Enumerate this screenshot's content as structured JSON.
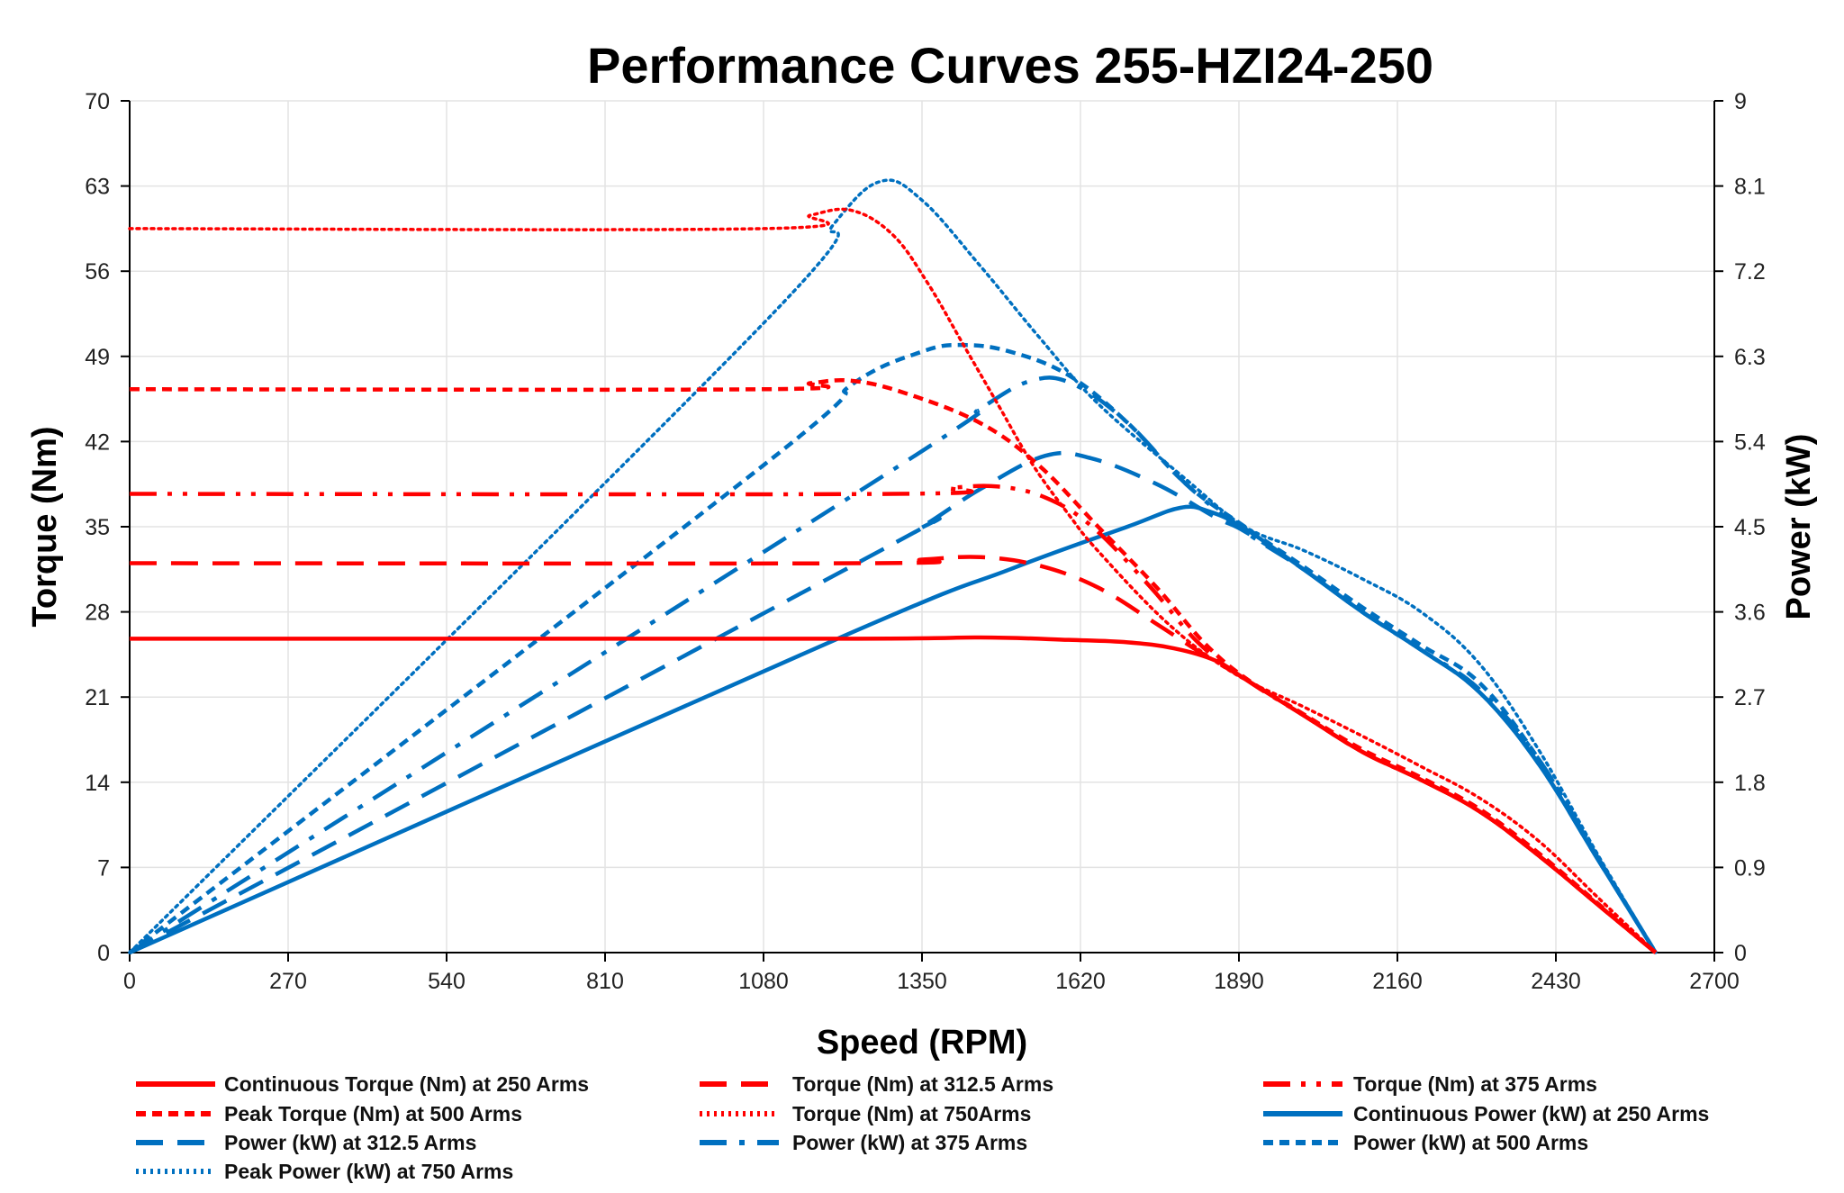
{
  "chart_data": {
    "type": "line",
    "title": "Performance Curves 255-HZI24-250",
    "xlabel": "Speed (RPM)",
    "ylabel": "Torque (Nm)",
    "y2label": "Power (kW)",
    "xlim": [
      0,
      2700
    ],
    "ylim": [
      0,
      70
    ],
    "y2lim": [
      0,
      9
    ],
    "xticks": [
      0,
      270,
      540,
      810,
      1080,
      1350,
      1620,
      1890,
      2160,
      2430,
      2700
    ],
    "yticks": [
      0,
      7,
      14,
      21,
      28,
      35,
      42,
      49,
      56,
      63,
      70
    ],
    "y2ticks": [
      "0",
      "0.9",
      "1.8",
      "2.7",
      "3.6",
      "4.5",
      "5.4",
      "6.3",
      "7.2",
      "8.1",
      "9"
    ],
    "grid": true,
    "legend_position": "bottom",
    "colors": {
      "torque": "#ff0000",
      "power": "#0070c0"
    },
    "series": [
      {
        "name": "Continuous Torque (Nm) at 250 Arms",
        "axis": "left",
        "color": "#ff0000",
        "style": "solid",
        "points": [
          [
            0,
            25.8
          ],
          [
            1200,
            25.8
          ],
          [
            1450,
            25.9
          ],
          [
            1600,
            25.7
          ],
          [
            1700,
            25.5
          ],
          [
            1780,
            25
          ],
          [
            1850,
            24
          ],
          [
            1900,
            22.5
          ],
          [
            2000,
            19.5
          ],
          [
            2100,
            16.5
          ],
          [
            2200,
            14.2
          ],
          [
            2300,
            11.6
          ],
          [
            2400,
            8
          ],
          [
            2500,
            4
          ],
          [
            2600,
            0
          ]
        ]
      },
      {
        "name": "Torque (Nm) at 312.5 Arms",
        "axis": "left",
        "color": "#ff0000",
        "style": "longdash",
        "points": [
          [
            0,
            32
          ],
          [
            1250,
            32
          ],
          [
            1350,
            32.3
          ],
          [
            1450,
            32.5
          ],
          [
            1550,
            31.8
          ],
          [
            1650,
            30
          ],
          [
            1750,
            27
          ],
          [
            1820,
            24.8
          ],
          [
            1900,
            22.5
          ],
          [
            2000,
            19.5
          ],
          [
            2100,
            16.5
          ],
          [
            2200,
            14.2
          ],
          [
            2300,
            11.6
          ],
          [
            2400,
            8
          ],
          [
            2500,
            4
          ],
          [
            2600,
            0
          ]
        ]
      },
      {
        "name": "Torque (Nm) at 375 Arms",
        "axis": "left",
        "color": "#ff0000",
        "style": "dashdotdot",
        "points": [
          [
            0,
            37.7
          ],
          [
            1300,
            37.7
          ],
          [
            1400,
            38.2
          ],
          [
            1480,
            38.3
          ],
          [
            1560,
            37.4
          ],
          [
            1640,
            35
          ],
          [
            1740,
            30
          ],
          [
            1820,
            25.5
          ],
          [
            1900,
            22.5
          ],
          [
            2000,
            19.5
          ],
          [
            2100,
            16.5
          ],
          [
            2200,
            14.2
          ],
          [
            2300,
            11.6
          ],
          [
            2400,
            8
          ],
          [
            2500,
            4
          ],
          [
            2600,
            0
          ]
        ]
      },
      {
        "name": "Peak Torque (Nm) at 500 Arms",
        "axis": "left",
        "color": "#ff0000",
        "style": "dash",
        "points": [
          [
            0,
            46.3
          ],
          [
            1080,
            46.3
          ],
          [
            1160,
            46.8
          ],
          [
            1230,
            47
          ],
          [
            1320,
            46
          ],
          [
            1450,
            43.5
          ],
          [
            1550,
            40
          ],
          [
            1650,
            35
          ],
          [
            1750,
            30
          ],
          [
            1830,
            25.5
          ],
          [
            1900,
            22.6
          ],
          [
            2000,
            19.6
          ],
          [
            2100,
            16.7
          ],
          [
            2200,
            14.4
          ],
          [
            2300,
            11.8
          ],
          [
            2400,
            8.2
          ],
          [
            2500,
            4.1
          ],
          [
            2600,
            0
          ]
        ]
      },
      {
        "name": "Torque (Nm) at 750Arms",
        "axis": "left",
        "color": "#ff0000",
        "style": "dot",
        "points": [
          [
            0,
            59.5
          ],
          [
            1080,
            59.5
          ],
          [
            1160,
            60.6
          ],
          [
            1230,
            61
          ],
          [
            1300,
            59
          ],
          [
            1360,
            55
          ],
          [
            1420,
            50
          ],
          [
            1480,
            45
          ],
          [
            1540,
            40
          ],
          [
            1600,
            36
          ],
          [
            1650,
            33
          ],
          [
            1770,
            27
          ],
          [
            1880,
            23
          ],
          [
            2000,
            20.2
          ],
          [
            2100,
            17.8
          ],
          [
            2200,
            15.3
          ],
          [
            2300,
            12.7
          ],
          [
            2400,
            9.2
          ],
          [
            2500,
            4.6
          ],
          [
            2600,
            0
          ]
        ]
      },
      {
        "name": "Continuous Power (kW) at 250 Arms",
        "axis": "right",
        "color": "#0070c0",
        "style": "solid",
        "points": [
          [
            0,
            0
          ],
          [
            1200,
            3.3
          ],
          [
            1500,
            4.05
          ],
          [
            1700,
            4.5
          ],
          [
            1790,
            4.7
          ],
          [
            1840,
            4.66
          ],
          [
            1900,
            4.48
          ],
          [
            2000,
            4.05
          ],
          [
            2100,
            3.6
          ],
          [
            2200,
            3.2
          ],
          [
            2300,
            2.75
          ],
          [
            2400,
            2.0
          ],
          [
            2500,
            1.0
          ],
          [
            2600,
            0
          ]
        ]
      },
      {
        "name": "Power (kW) at 312.5 Arms",
        "axis": "right",
        "color": "#0070c0",
        "style": "longdash",
        "points": [
          [
            0,
            0
          ],
          [
            1250,
            4.15
          ],
          [
            1350,
            4.5
          ],
          [
            1450,
            4.9
          ],
          [
            1560,
            5.25
          ],
          [
            1640,
            5.22
          ],
          [
            1750,
            4.95
          ],
          [
            1850,
            4.6
          ],
          [
            1900,
            4.45
          ],
          [
            2000,
            4.05
          ],
          [
            2100,
            3.6
          ],
          [
            2200,
            3.2
          ],
          [
            2300,
            2.75
          ],
          [
            2400,
            2.0
          ],
          [
            2500,
            1.0
          ],
          [
            2600,
            0
          ]
        ]
      },
      {
        "name": "Power (kW) at 375 Arms",
        "axis": "right",
        "color": "#0070c0",
        "style": "dashdot",
        "points": [
          [
            0,
            0
          ],
          [
            1300,
            5.1
          ],
          [
            1450,
            5.75
          ],
          [
            1540,
            6.05
          ],
          [
            1610,
            6.0
          ],
          [
            1700,
            5.6
          ],
          [
            1800,
            4.95
          ],
          [
            1900,
            4.45
          ],
          [
            2000,
            4.05
          ],
          [
            2100,
            3.6
          ],
          [
            2200,
            3.2
          ],
          [
            2300,
            2.78
          ],
          [
            2400,
            2.05
          ],
          [
            2500,
            1.02
          ],
          [
            2600,
            0
          ]
        ]
      },
      {
        "name": "Power (kW) at 500 Arms",
        "axis": "right",
        "color": "#0070c0",
        "style": "dash",
        "points": [
          [
            0,
            0
          ],
          [
            1080,
            5.15
          ],
          [
            1230,
            6.0
          ],
          [
            1350,
            6.35
          ],
          [
            1420,
            6.42
          ],
          [
            1500,
            6.35
          ],
          [
            1600,
            6.1
          ],
          [
            1700,
            5.6
          ],
          [
            1800,
            4.95
          ],
          [
            1900,
            4.5
          ],
          [
            2000,
            4.08
          ],
          [
            2100,
            3.65
          ],
          [
            2200,
            3.25
          ],
          [
            2300,
            2.85
          ],
          [
            2400,
            2.05
          ],
          [
            2500,
            1.02
          ],
          [
            2600,
            0
          ]
        ]
      },
      {
        "name": "Peak Power (kW) at 750 Arms",
        "axis": "right",
        "color": "#0070c0",
        "style": "dot",
        "points": [
          [
            0,
            0
          ],
          [
            1080,
            6.65
          ],
          [
            1200,
            7.7
          ],
          [
            1280,
            8.15
          ],
          [
            1350,
            7.95
          ],
          [
            1450,
            7.25
          ],
          [
            1550,
            6.5
          ],
          [
            1650,
            5.8
          ],
          [
            1800,
            5.0
          ],
          [
            1900,
            4.5
          ],
          [
            2000,
            4.25
          ],
          [
            2100,
            3.95
          ],
          [
            2200,
            3.6
          ],
          [
            2300,
            3.05
          ],
          [
            2400,
            2.15
          ],
          [
            2500,
            1.05
          ],
          [
            2600,
            0
          ]
        ]
      }
    ]
  }
}
